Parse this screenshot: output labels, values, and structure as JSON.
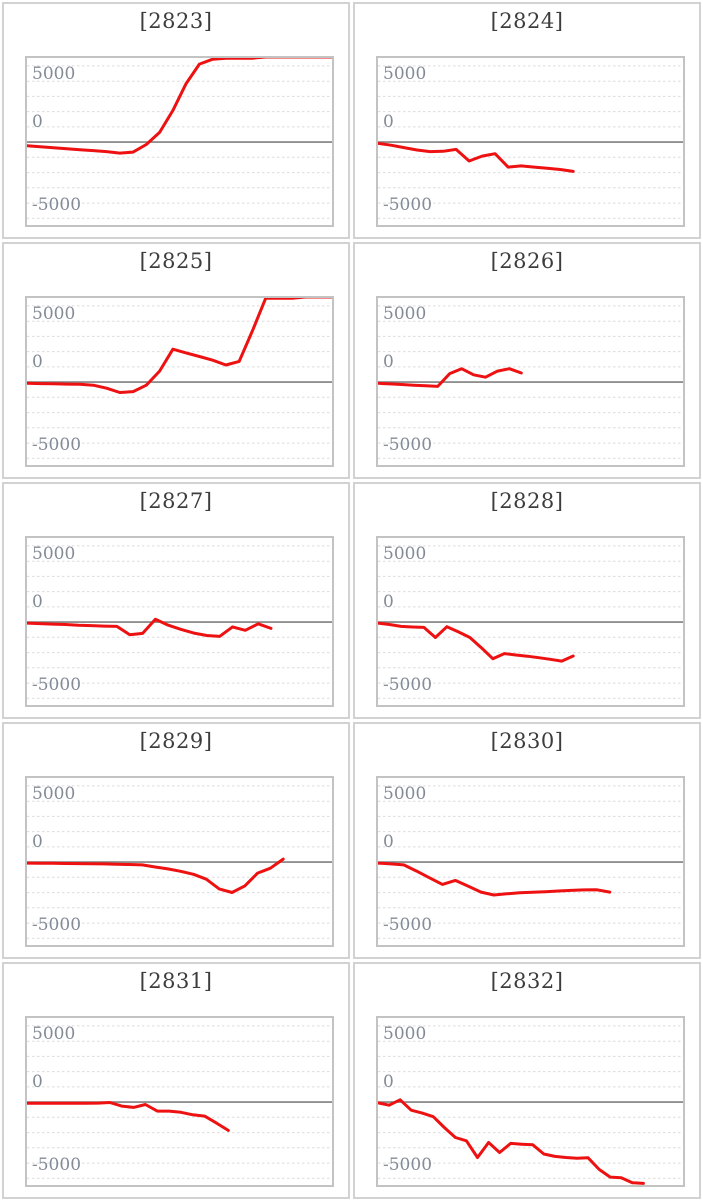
{
  "page": {
    "background": "#ffffff"
  },
  "colors": {
    "line_red": "#ed1111",
    "gridline": "#dcdcdc",
    "zero_axis": "#7f7f7f",
    "plot_border": "#c3c3c3",
    "tile_border": "#d2d2d2",
    "title_text": "#3d3d3d",
    "tick_text": "#838b97"
  },
  "axis": {
    "tick_labels": [
      "5000",
      "0",
      "-5000"
    ],
    "tick_values": [
      5000,
      0,
      -5000
    ],
    "ylim": [
      -6800,
      6900
    ],
    "grid_values": [
      6250,
      5000,
      3750,
      2500,
      1250,
      -1250,
      -2500,
      -3750,
      -5000,
      -6250
    ],
    "zero_line_solid": true,
    "grid_style": "dashed"
  },
  "chart_data": [
    {
      "type": "line",
      "title": "[2823]",
      "series_color": "#ed1111",
      "x_end_fraction": 1.0,
      "values": [
        -300,
        -380,
        -460,
        -540,
        -620,
        -700,
        -780,
        -900,
        -820,
        -200,
        800,
        2600,
        4800,
        6400,
        6800,
        6880,
        6880,
        6880,
        6980,
        6980,
        6980,
        6980,
        6980,
        6980
      ]
    },
    {
      "type": "line",
      "title": "[2824]",
      "series_color": "#ed1111",
      "x_end_fraction": 0.64,
      "values": [
        -100,
        -250,
        -450,
        -650,
        -780,
        -750,
        -600,
        -1550,
        -1150,
        -950,
        -2050,
        -1950,
        -2050,
        -2150,
        -2250,
        -2400
      ]
    },
    {
      "type": "line",
      "title": "[2825]",
      "series_color": "#ed1111",
      "x_end_fraction": 1.0,
      "values": [
        -100,
        -120,
        -140,
        -160,
        -180,
        -250,
        -500,
        -850,
        -780,
        -250,
        900,
        2700,
        2400,
        2100,
        1800,
        1400,
        1700,
        4200,
        6880,
        6880,
        6880,
        6980,
        6980,
        6980
      ]
    },
    {
      "type": "line",
      "title": "[2826]",
      "series_color": "#ed1111",
      "x_end_fraction": 0.47,
      "values": [
        -100,
        -150,
        -200,
        -250,
        -300,
        -350,
        700,
        1100,
        600,
        400,
        900,
        1100,
        750
      ]
    },
    {
      "type": "line",
      "title": "[2827]",
      "series_color": "#ed1111",
      "x_end_fraction": 0.8,
      "values": [
        -80,
        -120,
        -160,
        -200,
        -250,
        -290,
        -330,
        -350,
        -1030,
        -930,
        230,
        -250,
        -600,
        -900,
        -1100,
        -1170,
        -390,
        -670,
        -140,
        -520
      ]
    },
    {
      "type": "line",
      "title": "[2828]",
      "series_color": "#ed1111",
      "x_end_fraction": 0.64,
      "values": [
        -80,
        -200,
        -350,
        -400,
        -430,
        -1260,
        -380,
        -800,
        -1260,
        -2100,
        -3000,
        -2580,
        -2700,
        -2800,
        -2920,
        -3050,
        -3200,
        -2780
      ]
    },
    {
      "type": "line",
      "title": "[2829]",
      "series_color": "#ed1111",
      "x_end_fraction": 0.84,
      "values": [
        -80,
        -90,
        -100,
        -110,
        -120,
        -130,
        -150,
        -170,
        -200,
        -230,
        -400,
        -560,
        -750,
        -1000,
        -1400,
        -2200,
        -2490,
        -1950,
        -900,
        -500,
        250
      ]
    },
    {
      "type": "line",
      "title": "[2830]",
      "series_color": "#ed1111",
      "x_end_fraction": 0.76,
      "values": [
        -80,
        -150,
        -230,
        -740,
        -1290,
        -1830,
        -1500,
        -1970,
        -2460,
        -2700,
        -2600,
        -2520,
        -2470,
        -2430,
        -2370,
        -2320,
        -2280,
        -2270,
        -2460
      ]
    },
    {
      "type": "line",
      "title": "[2831]",
      "series_color": "#ed1111",
      "x_end_fraction": 0.66,
      "values": [
        -100,
        -100,
        -100,
        -100,
        -100,
        -100,
        -80,
        -30,
        -330,
        -430,
        -200,
        -740,
        -740,
        -840,
        -1040,
        -1150,
        -1720,
        -2320
      ]
    },
    {
      "type": "line",
      "title": "[2832]",
      "series_color": "#ed1111",
      "x_end_fraction": 0.87,
      "values": [
        -60,
        -250,
        190,
        -660,
        -900,
        -1200,
        -2080,
        -2900,
        -3170,
        -4540,
        -3310,
        -4130,
        -3390,
        -3450,
        -3500,
        -4260,
        -4450,
        -4540,
        -4600,
        -4570,
        -5520,
        -6150,
        -6200,
        -6610,
        -6670
      ]
    }
  ]
}
